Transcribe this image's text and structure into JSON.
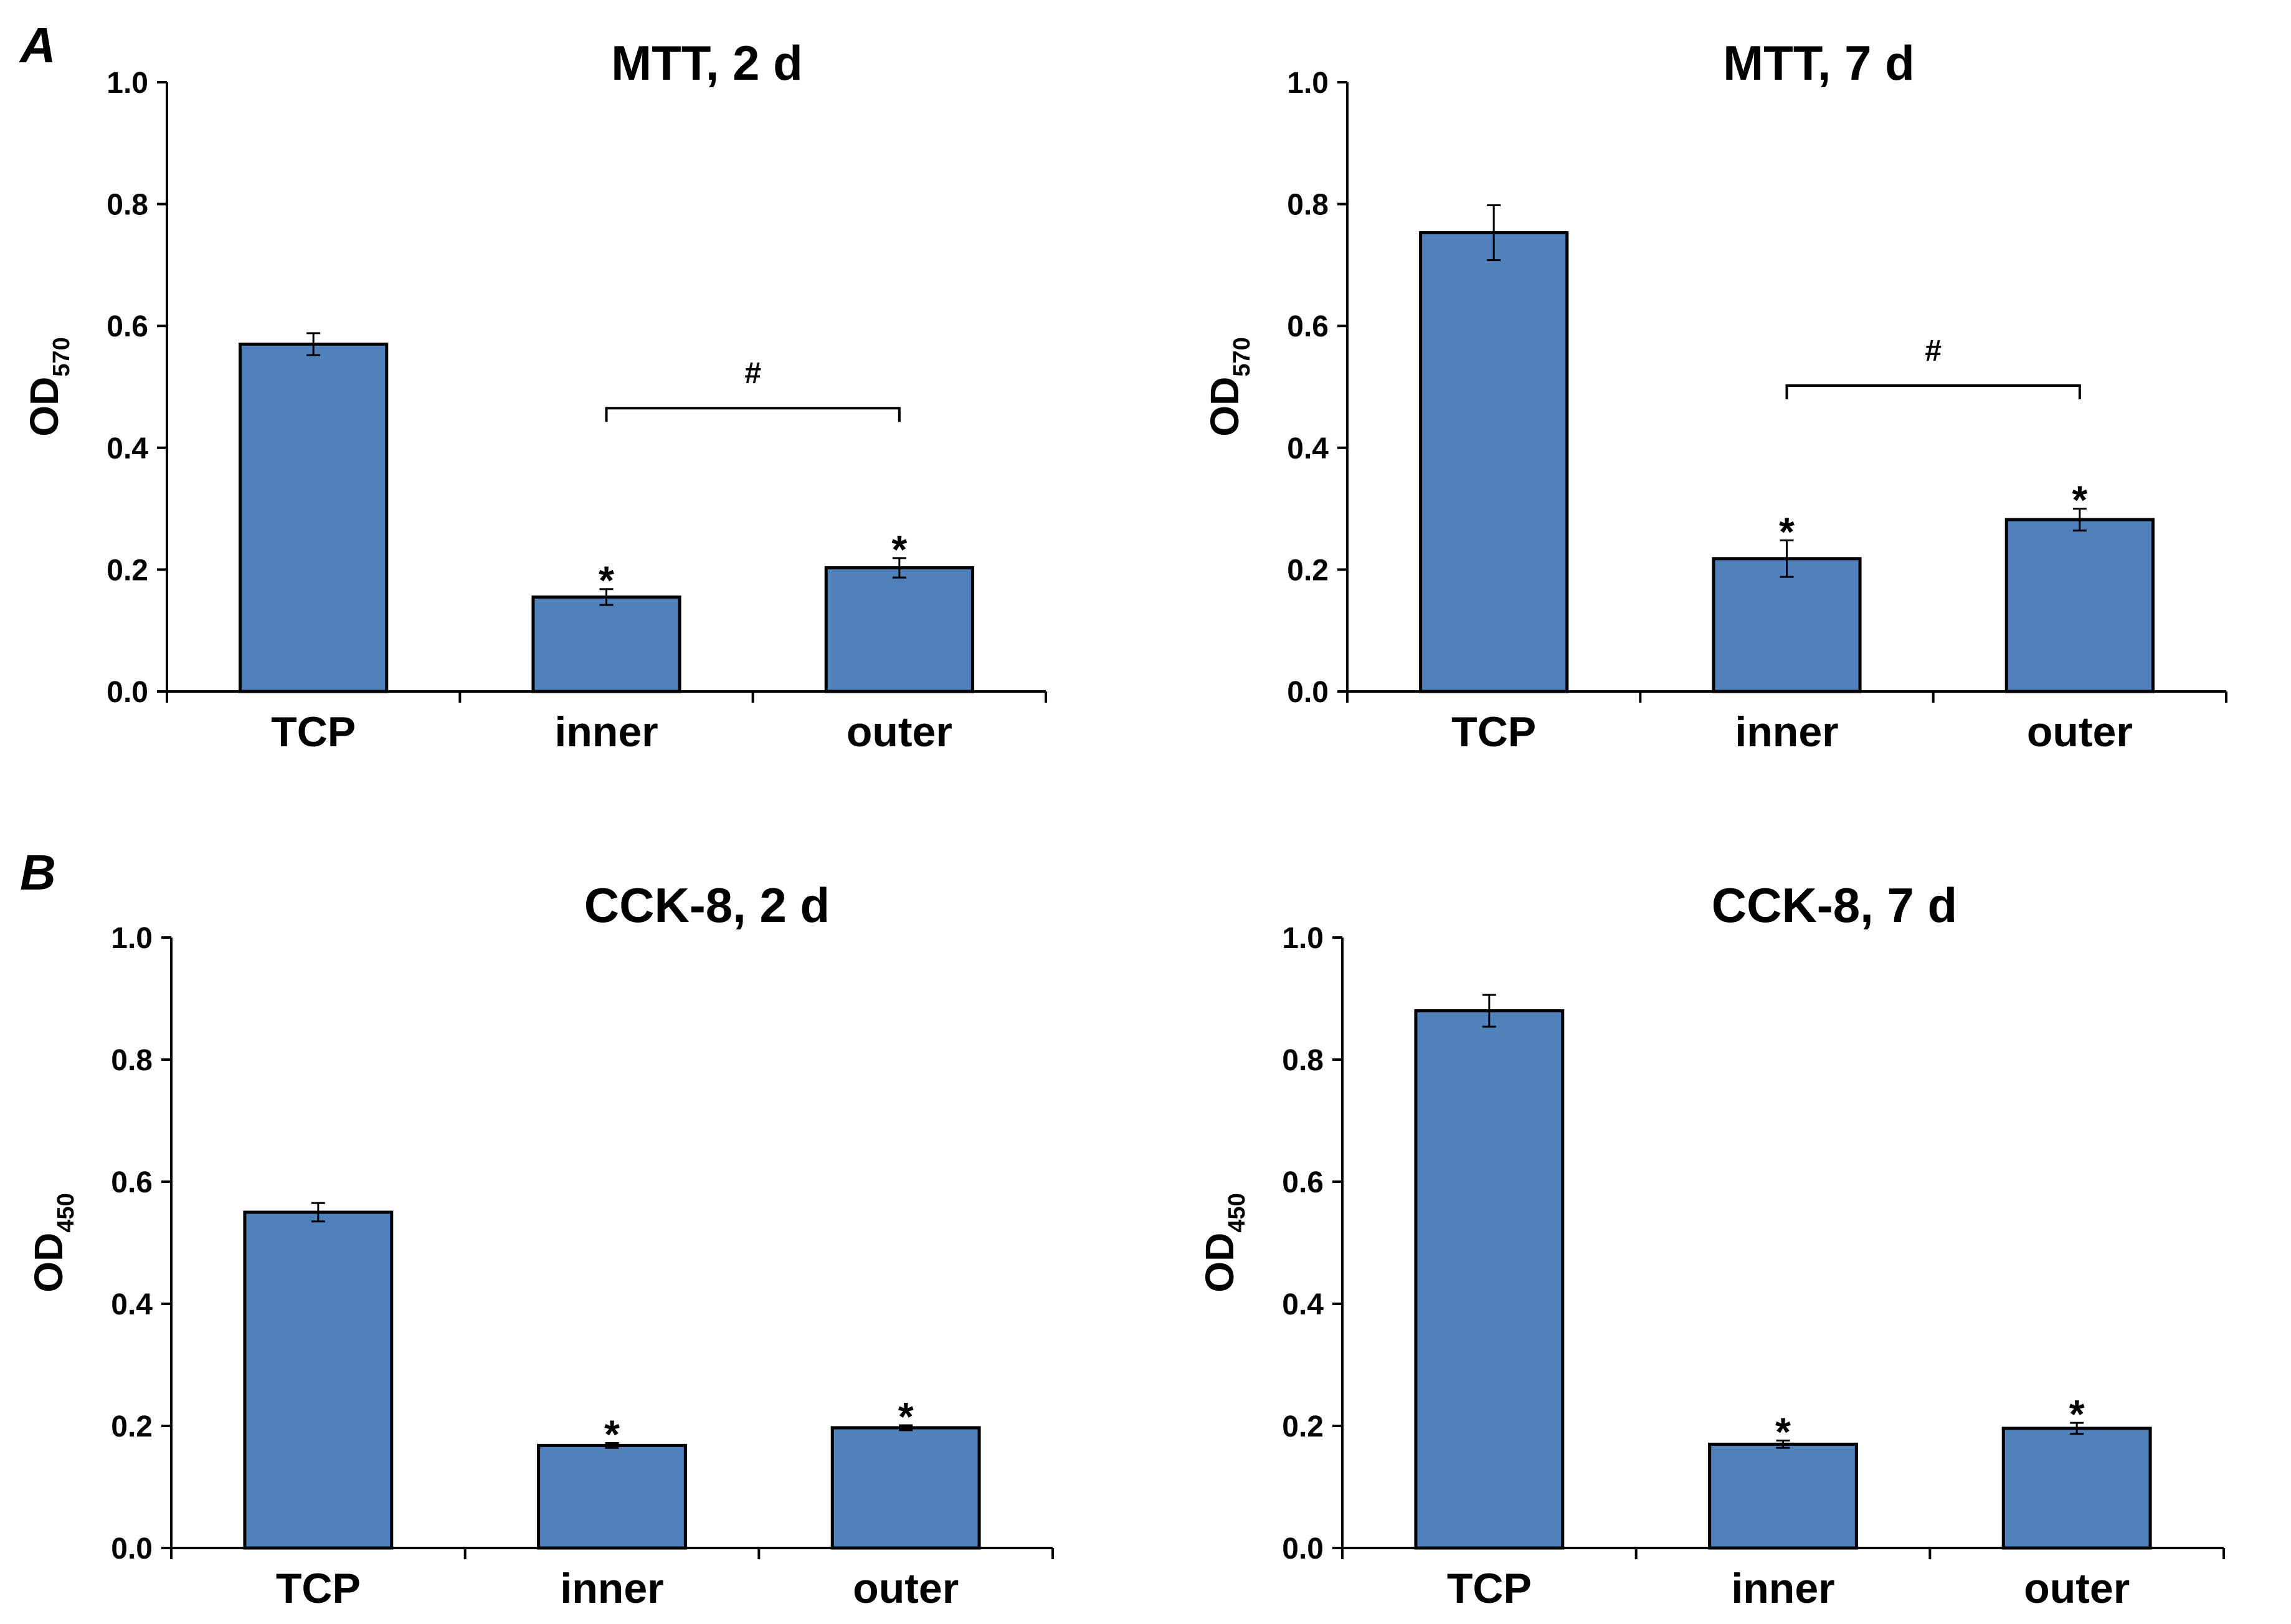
{
  "panels": [
    {
      "letter": "A"
    },
    {
      "letter": "B"
    }
  ],
  "chart_data": [
    {
      "type": "bar",
      "title": "MTT, 2 d",
      "ylabel": "OD",
      "ylabel_sub": "570",
      "xlabel": "",
      "categories": [
        "TCP",
        "inner",
        "outer"
      ],
      "values": [
        0.57,
        0.155,
        0.203
      ],
      "errors": [
        0.018,
        0.013,
        0.016
      ],
      "ylim": [
        0,
        1.0
      ],
      "yticks": [
        "0.0",
        "0.2",
        "0.4",
        "0.6",
        "0.8",
        "1.0"
      ],
      "significance": [
        "",
        "*",
        "*"
      ],
      "bracket": {
        "from": 1,
        "to": 2,
        "label": "#",
        "y": 0.465
      },
      "color": "#4f81bd"
    },
    {
      "type": "bar",
      "title": "MTT, 7 d",
      "ylabel": "OD",
      "ylabel_sub": "570",
      "xlabel": "",
      "categories": [
        "TCP",
        "inner",
        "outer"
      ],
      "values": [
        0.753,
        0.218,
        0.282
      ],
      "errors": [
        0.045,
        0.03,
        0.018
      ],
      "ylim": [
        0,
        1.0
      ],
      "yticks": [
        "0.0",
        "0.2",
        "0.4",
        "0.6",
        "0.8",
        "1.0"
      ],
      "significance": [
        "",
        "*",
        "*"
      ],
      "bracket": {
        "from": 1,
        "to": 2,
        "label": "#",
        "y": 0.502
      },
      "color": "#4f81bd"
    },
    {
      "type": "bar",
      "title": "CCK-8, 2 d",
      "ylabel": "OD",
      "ylabel_sub": "450",
      "xlabel": "",
      "categories": [
        "TCP",
        "inner",
        "outer"
      ],
      "values": [
        0.55,
        0.168,
        0.197
      ],
      "errors": [
        0.015,
        0.004,
        0.004
      ],
      "ylim": [
        0,
        1.0
      ],
      "yticks": [
        "0.0",
        "0.2",
        "0.4",
        "0.6",
        "0.8",
        "1.0"
      ],
      "significance": [
        "",
        "*",
        "*"
      ],
      "color": "#4f81bd"
    },
    {
      "type": "bar",
      "title": "CCK-8, 7 d",
      "ylabel": "OD",
      "ylabel_sub": "450",
      "xlabel": "",
      "categories": [
        "TCP",
        "inner",
        "outer"
      ],
      "values": [
        0.88,
        0.17,
        0.196
      ],
      "errors": [
        0.026,
        0.006,
        0.009
      ],
      "ylim": [
        0,
        1.0
      ],
      "yticks": [
        "0.0",
        "0.2",
        "0.4",
        "0.6",
        "0.8",
        "1.0"
      ],
      "significance": [
        "",
        "*",
        "*"
      ],
      "color": "#4f81bd"
    }
  ]
}
